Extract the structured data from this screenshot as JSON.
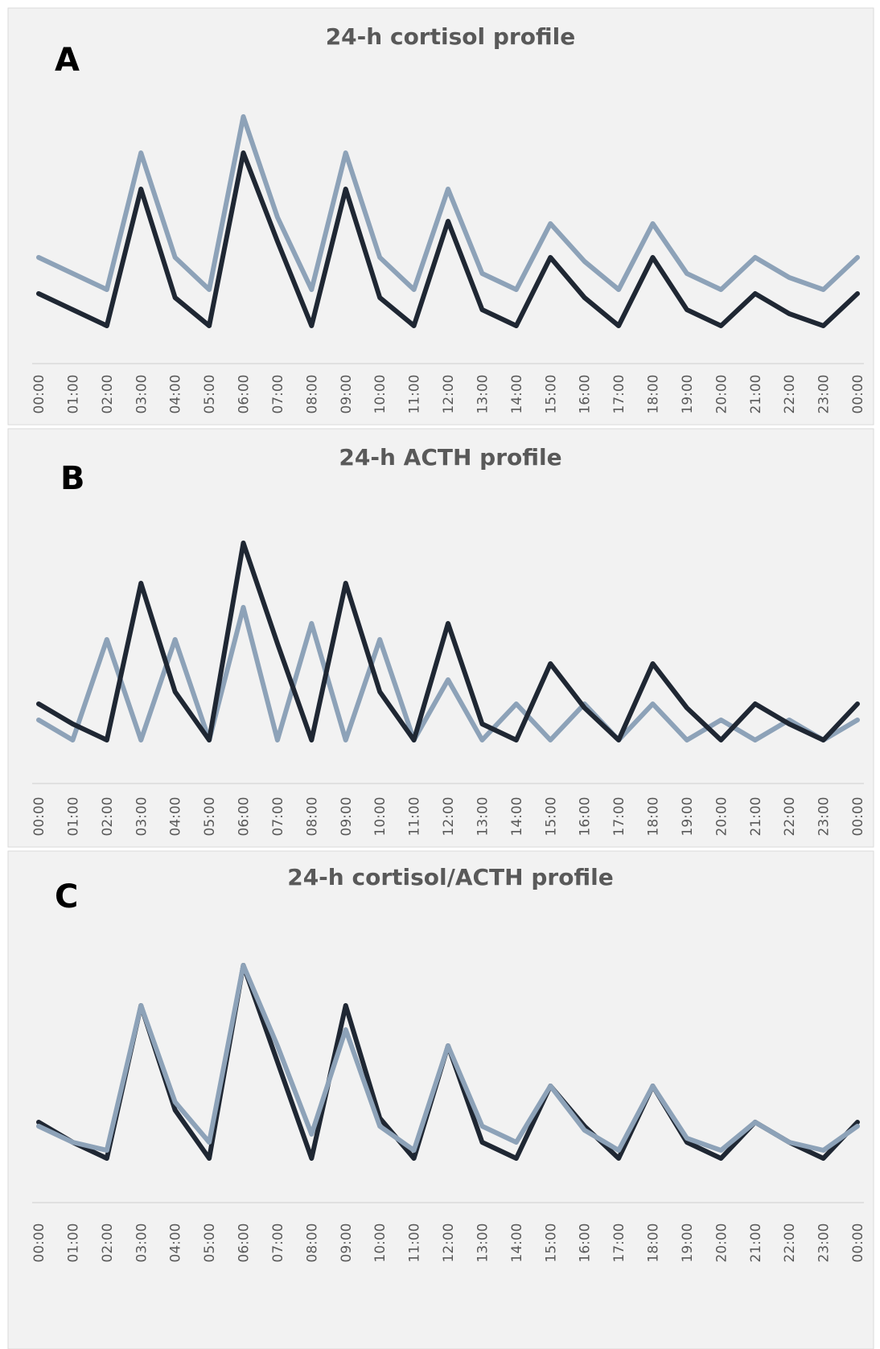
{
  "chart_data": [
    {
      "type": "line",
      "panel": "A",
      "title": "24-h cortisol profile",
      "categories": [
        "00:00",
        "01:00",
        "02:00",
        "03:00",
        "04:00",
        "05:00",
        "06:00",
        "07:00",
        "08:00",
        "09:00",
        "10:00",
        "11:00",
        "12:00",
        "13:00",
        "14:00",
        "15:00",
        "16:00",
        "17:00",
        "18:00",
        "19:00",
        "20:00",
        "21:00",
        "22:00",
        "23:00",
        "00:00"
      ],
      "series": [
        {
          "color": "#8da2b8",
          "values": [
            100,
            80,
            60,
            230,
            100,
            60,
            275,
            150,
            60,
            230,
            100,
            60,
            185,
            80,
            60,
            142,
            95,
            60,
            142,
            80,
            60,
            100,
            75,
            60,
            100
          ]
        },
        {
          "color": "#1f2733",
          "values": [
            55,
            35,
            15,
            185,
            50,
            15,
            230,
            120,
            15,
            185,
            50,
            15,
            145,
            35,
            15,
            100,
            50,
            15,
            100,
            35,
            15,
            55,
            30,
            15,
            55
          ]
        }
      ]
    },
    {
      "type": "line",
      "panel": "B",
      "title": "24-h ACTH profile",
      "categories": [
        "00:00",
        "01:00",
        "02:00",
        "03:00",
        "04:00",
        "05:00",
        "06:00",
        "07:00",
        "08:00",
        "09:00",
        "10:00",
        "11:00",
        "12:00",
        "13:00",
        "14:00",
        "15:00",
        "16:00",
        "17:00",
        "18:00",
        "19:00",
        "20:00",
        "21:00",
        "22:00",
        "23:00",
        "00:00"
      ],
      "series": [
        {
          "color": "#8da2b8",
          "values": [
            45,
            20,
            145,
            20,
            145,
            20,
            185,
            20,
            165,
            20,
            145,
            20,
            95,
            20,
            65,
            20,
            65,
            20,
            65,
            20,
            45,
            20,
            45,
            20,
            45
          ]
        },
        {
          "color": "#1f2733",
          "values": [
            65,
            40,
            20,
            215,
            80,
            20,
            265,
            140,
            20,
            215,
            80,
            20,
            165,
            40,
            20,
            115,
            60,
            20,
            115,
            60,
            20,
            65,
            40,
            20,
            65
          ]
        }
      ]
    },
    {
      "type": "line",
      "panel": "C",
      "title": "24-h cortisol/ACTH profile",
      "categories": [
        "00:00",
        "01:00",
        "02:00",
        "03:00",
        "04:00",
        "05:00",
        "06:00",
        "07:00",
        "08:00",
        "09:00",
        "10:00",
        "11:00",
        "12:00",
        "13:00",
        "14:00",
        "15:00",
        "16:00",
        "17:00",
        "18:00",
        "19:00",
        "20:00",
        "21:00",
        "22:00",
        "23:00",
        "00:00"
      ],
      "series": [
        {
          "color": "#1f2733",
          "values": [
            65,
            40,
            20,
            210,
            80,
            20,
            260,
            140,
            20,
            210,
            70,
            20,
            160,
            40,
            20,
            110,
            60,
            20,
            110,
            40,
            20,
            65,
            40,
            20,
            65
          ]
        },
        {
          "color": "#8da2b8",
          "values": [
            60,
            40,
            30,
            210,
            90,
            40,
            260,
            160,
            50,
            180,
            60,
            30,
            160,
            60,
            40,
            110,
            55,
            30,
            110,
            45,
            30,
            65,
            40,
            30,
            60
          ]
        }
      ]
    }
  ]
}
